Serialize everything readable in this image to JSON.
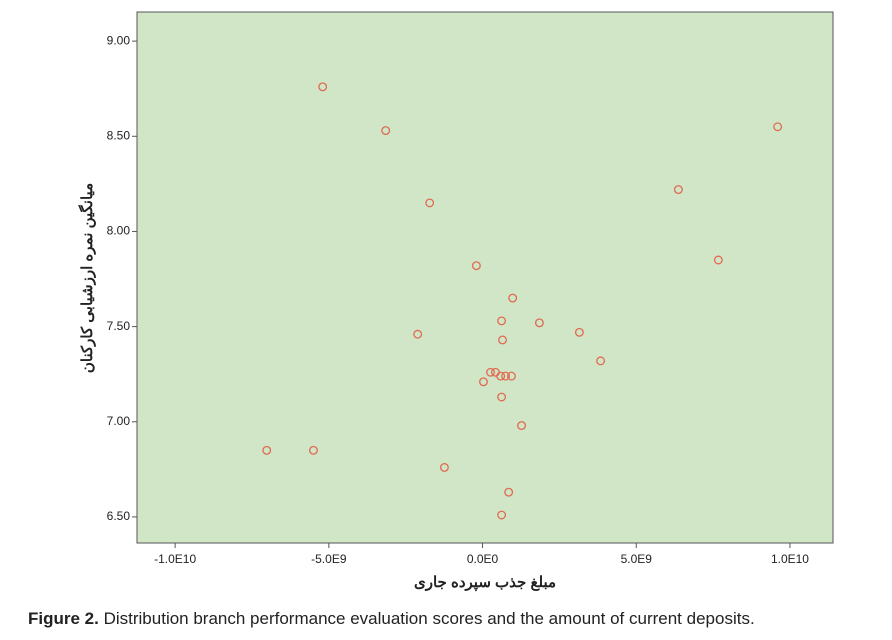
{
  "chart_data": {
    "type": "scatter",
    "x_label": "مبلغ جذب سپرده جاری",
    "y_label": "میانگین نمره ارزشیابی کارکنان",
    "caption_label": "Figure 2.",
    "caption_text": "Distribution branch performance evaluation scores and the amount of current deposits.",
    "color": "#e06a52",
    "background": "#d1e6c7",
    "xlim": [
      -11240000000,
      11400000000
    ],
    "ylim": [
      6.363,
      9.153
    ],
    "xticks": [
      {
        "value": -10000000000,
        "label": "-1.0E10"
      },
      {
        "value": -5000000000,
        "label": "-5.0E9"
      },
      {
        "value": 0,
        "label": "0.0E0"
      },
      {
        "value": 5000000000,
        "label": "5.0E9"
      },
      {
        "value": 10000000000,
        "label": "1.0E10"
      }
    ],
    "yticks": [
      {
        "value": 6.5,
        "label": "6.50"
      },
      {
        "value": 7,
        "label": "7.00"
      },
      {
        "value": 7.5,
        "label": "7.50"
      },
      {
        "value": 8,
        "label": "8.00"
      },
      {
        "value": 8.5,
        "label": "8.50"
      },
      {
        "value": 9,
        "label": "9.00"
      }
    ],
    "x": [
      -5200000000,
      -3150000000,
      -1720000000,
      9600000000,
      6370000000,
      7670000000,
      -200000000,
      980000000,
      620000000,
      1850000000,
      3150000000,
      -2110000000,
      650000000,
      3840000000,
      260000000,
      420000000,
      590000000,
      750000000,
      940000000,
      30000000,
      620000000,
      1270000000,
      -7020000000,
      -5500000000,
      -1240000000,
      850000000,
      620000000
    ],
    "values": [
      8.76,
      8.53,
      8.15,
      8.55,
      8.22,
      7.85,
      7.82,
      7.65,
      7.53,
      7.52,
      7.47,
      7.46,
      7.43,
      7.32,
      7.26,
      7.26,
      7.24,
      7.24,
      7.24,
      7.21,
      7.13,
      6.98,
      6.85,
      6.85,
      6.76,
      6.63,
      6.51
    ]
  }
}
